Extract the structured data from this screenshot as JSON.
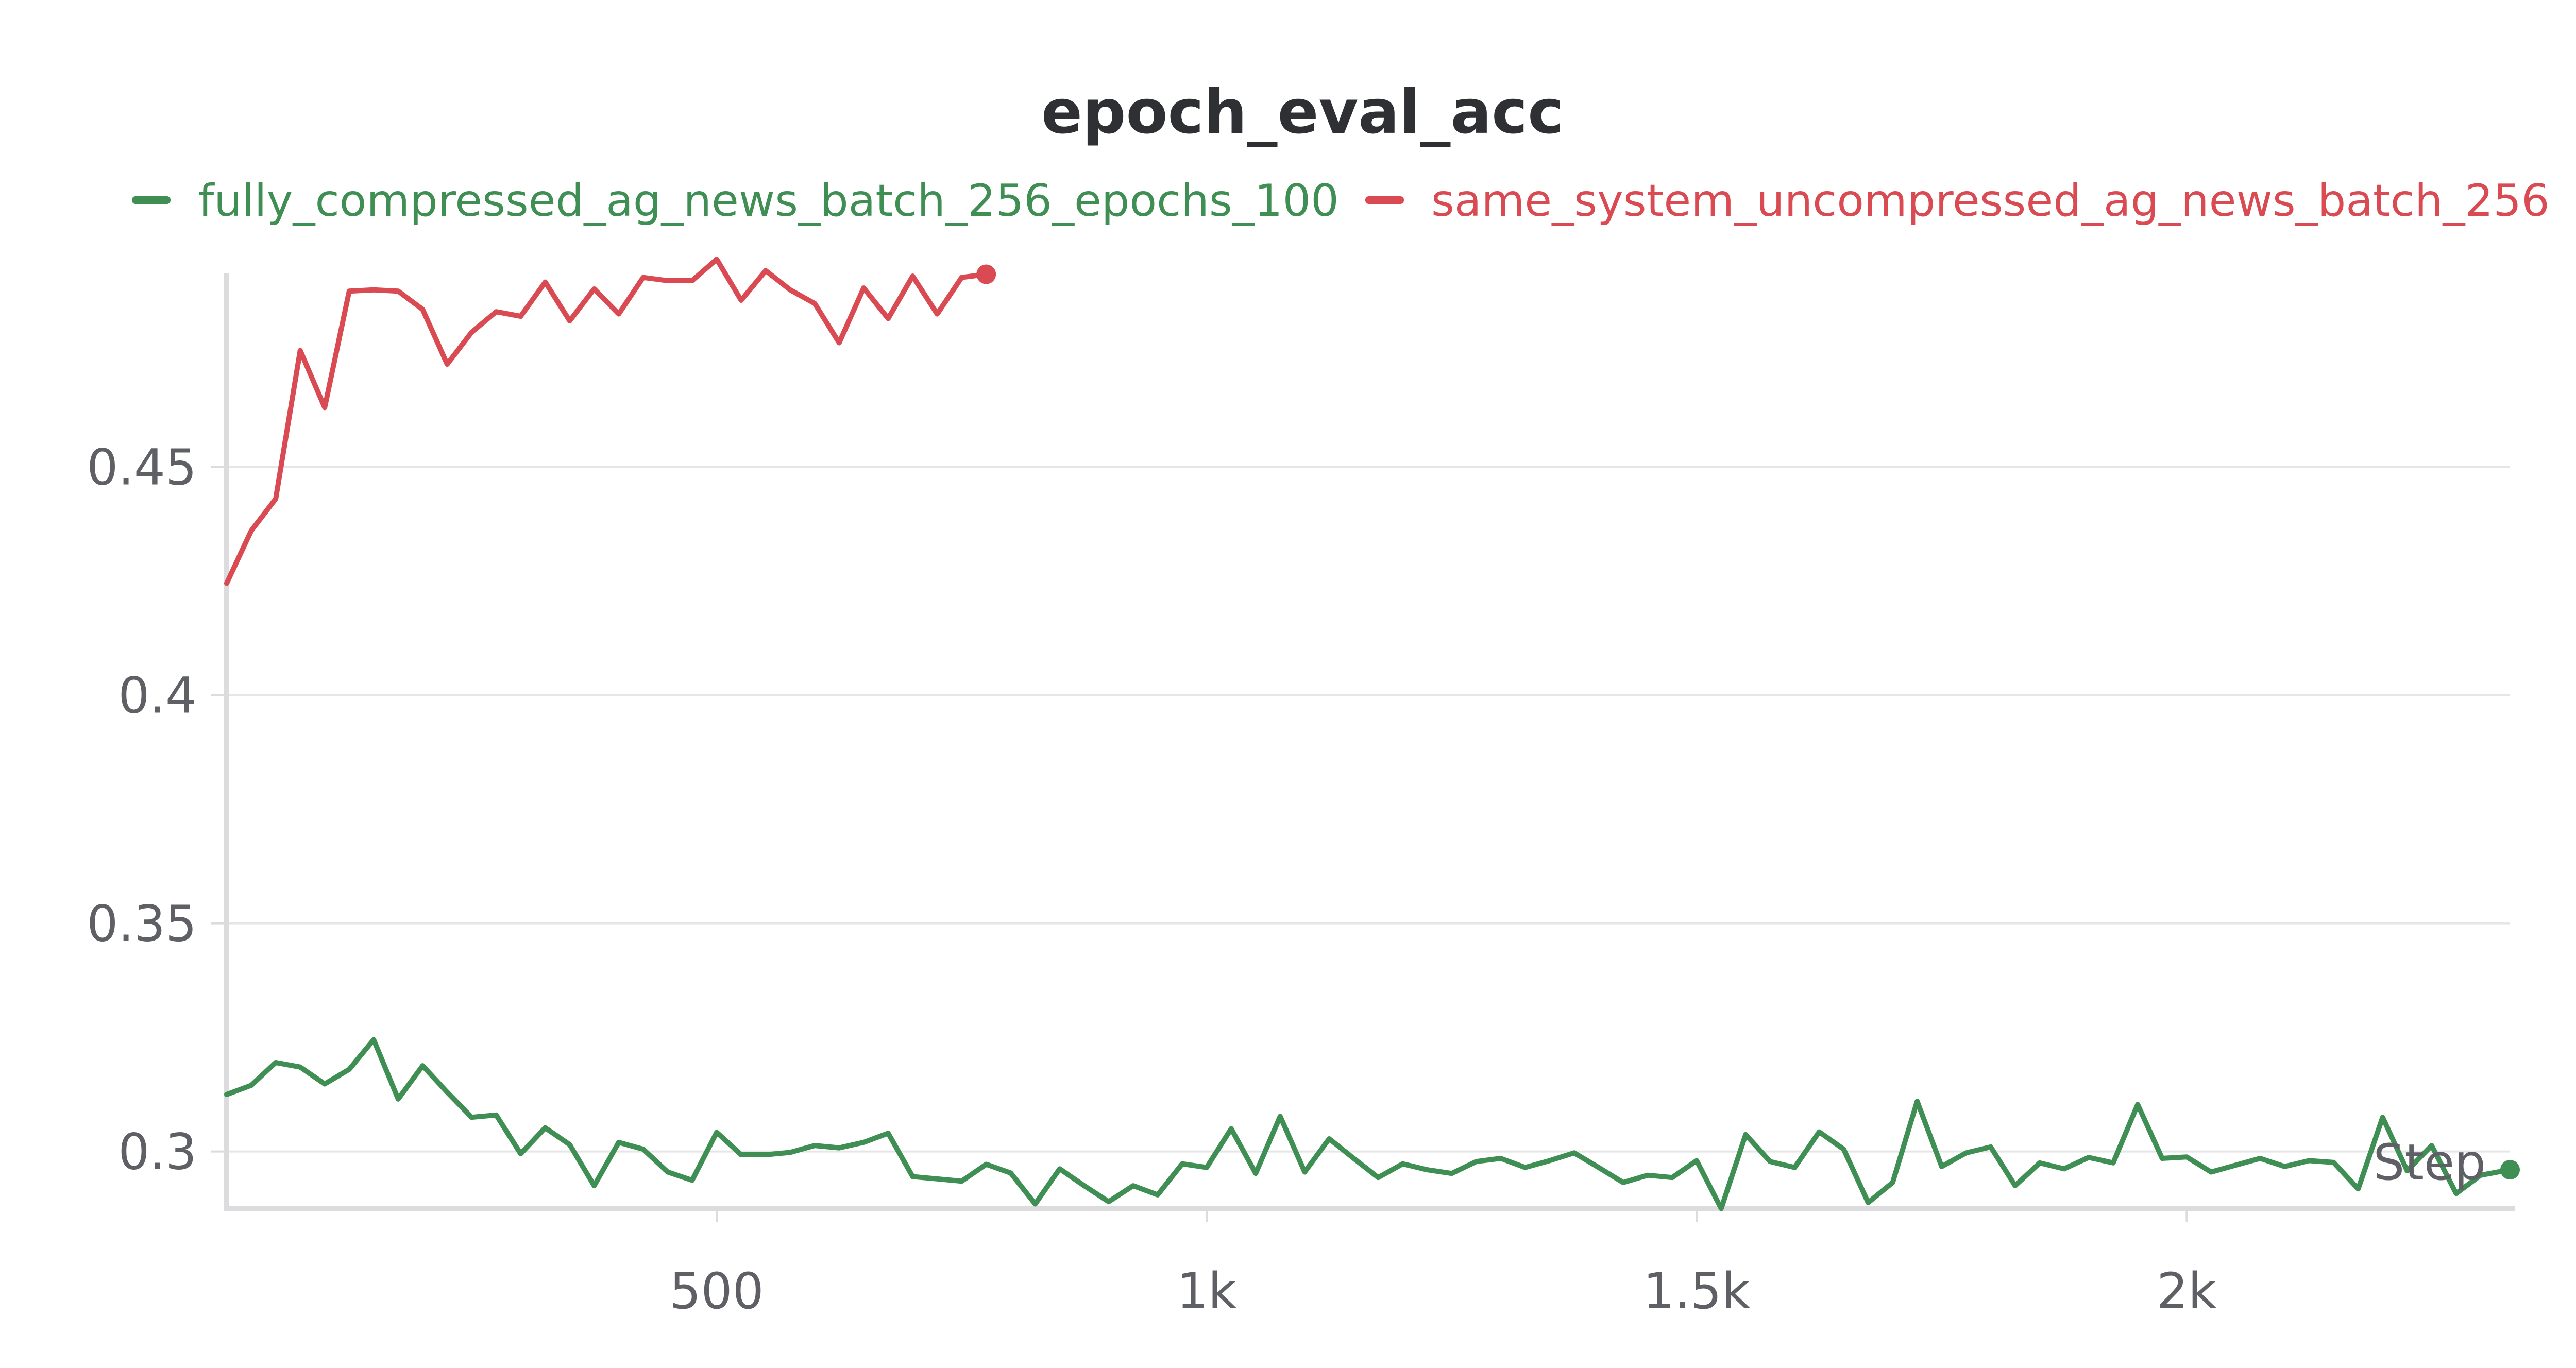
{
  "chart_data": {
    "type": "line",
    "title": "epoch_eval_acc",
    "xlabel": "Step",
    "ylabel": "",
    "xlim": [
      0,
      2330
    ],
    "ylim": [
      0.288,
      0.497
    ],
    "x_ticks": [
      500,
      1000,
      1500,
      2000
    ],
    "x_tick_labels": [
      "500",
      "1k",
      "1.5k",
      "2k"
    ],
    "y_ticks": [
      0.3,
      0.35,
      0.4,
      0.45
    ],
    "y_tick_labels": [
      "0.3",
      "0.35",
      "0.4",
      "0.45"
    ],
    "grid": true,
    "legend_position": "top",
    "series": [
      {
        "name": "fully_compressed_ag_news_batch_256_epochs_100",
        "color": "#3f8f55",
        "end_marker": true,
        "x": [
          0,
          25,
          50,
          75,
          100,
          125,
          150,
          175,
          200,
          225,
          250,
          275,
          300,
          325,
          350,
          375,
          400,
          425,
          450,
          475,
          500,
          525,
          550,
          575,
          600,
          625,
          650,
          675,
          700,
          725,
          750,
          775,
          800,
          825,
          850,
          875,
          900,
          925,
          950,
          975,
          1000,
          1025,
          1050,
          1075,
          1100,
          1125,
          1150,
          1175,
          1200,
          1225,
          1250,
          1275,
          1300,
          1325,
          1350,
          1375,
          1400,
          1425,
          1450,
          1475,
          1500,
          1525,
          1550,
          1575,
          1600,
          1625,
          1650,
          1675,
          1700,
          1725,
          1750,
          1775,
          1800,
          1825,
          1850,
          1875,
          1900,
          1925,
          1950,
          1975,
          2000,
          2025,
          2050,
          2075,
          2100,
          2125,
          2150,
          2175,
          2200,
          2225,
          2250,
          2275,
          2300,
          2330
        ],
        "values": [
          0.3125,
          0.3145,
          0.3195,
          0.3185,
          0.3148,
          0.318,
          0.3245,
          0.3115,
          0.3188,
          0.313,
          0.3075,
          0.308,
          0.2995,
          0.3052,
          0.3015,
          0.2925,
          0.302,
          0.3005,
          0.2955,
          0.2937,
          0.3042,
          0.2993,
          0.2993,
          0.2998,
          0.3013,
          0.3008,
          0.302,
          0.304,
          0.2945,
          0.294,
          0.2935,
          0.2972,
          0.2953,
          0.2885,
          0.2962,
          0.2925,
          0.289,
          0.2925,
          0.2905,
          0.2973,
          0.2965,
          0.305,
          0.2952,
          0.3077,
          0.2955,
          0.3028,
          0.2985,
          0.2943,
          0.2973,
          0.296,
          0.2952,
          0.2978,
          0.2985,
          0.2965,
          0.298,
          0.2997,
          0.2965,
          0.2932,
          0.2948,
          0.2943,
          0.298,
          0.2875,
          0.3037,
          0.2978,
          0.2965,
          0.3043,
          0.3005,
          0.2888,
          0.2932,
          0.311,
          0.2967,
          0.2997,
          0.301,
          0.2925,
          0.2975,
          0.2962,
          0.2987,
          0.2975,
          0.3103,
          0.2985,
          0.2988,
          0.2955,
          0.297,
          0.2985,
          0.2967,
          0.298,
          0.2976,
          0.2918,
          0.3075,
          0.2958,
          0.3013,
          0.2908,
          0.2948,
          0.296
        ]
      },
      {
        "name": "same_system_uncompressed_ag_news_batch_256",
        "color": "#d94a52",
        "end_marker": true,
        "x": [
          0,
          25,
          50,
          75,
          100,
          125,
          150,
          175,
          200,
          225,
          250,
          275,
          300,
          325,
          350,
          375,
          400,
          425,
          450,
          475,
          500,
          525,
          550,
          575,
          600,
          625,
          650,
          675,
          700,
          725,
          750,
          775
        ],
        "values": [
          0.4245,
          0.436,
          0.443,
          0.4755,
          0.463,
          0.4885,
          0.4888,
          0.4885,
          0.4845,
          0.4725,
          0.4795,
          0.484,
          0.483,
          0.4905,
          0.482,
          0.489,
          0.4835,
          0.4915,
          0.4908,
          0.4908,
          0.4955,
          0.4865,
          0.493,
          0.4888,
          0.4858,
          0.4772,
          0.4892,
          0.4825,
          0.4918,
          0.4835,
          0.4915,
          0.4922
        ]
      }
    ]
  }
}
